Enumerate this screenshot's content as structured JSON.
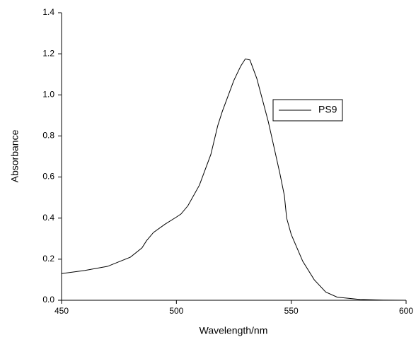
{
  "chart_data": {
    "type": "line",
    "xlabel": "Wavelength/nm",
    "ylabel": "Absorbance",
    "x": [
      450,
      460,
      470,
      480,
      485,
      487,
      490,
      495,
      500,
      502,
      505,
      510,
      515,
      518,
      520,
      525,
      528,
      530,
      532,
      535,
      540,
      545,
      547,
      548,
      550,
      555,
      560,
      565,
      570,
      580,
      590,
      600
    ],
    "series": [
      {
        "name": "PS9",
        "color": "#000000",
        "values": [
          0.13,
          0.145,
          0.165,
          0.21,
          0.255,
          0.29,
          0.33,
          0.37,
          0.405,
          0.42,
          0.46,
          0.56,
          0.71,
          0.85,
          0.92,
          1.07,
          1.14,
          1.175,
          1.17,
          1.08,
          0.87,
          0.62,
          0.51,
          0.4,
          0.32,
          0.19,
          0.1,
          0.04,
          0.015,
          0.004,
          0.001,
          0.0
        ]
      }
    ],
    "xlim": [
      450,
      600
    ],
    "xticks": [
      450,
      500,
      550,
      600
    ],
    "ylim": [
      0,
      1.4
    ],
    "yticks": [
      {
        "value": 0,
        "label": "0.0"
      },
      0.2,
      0.4,
      0.6,
      0.8,
      {
        "value": 1,
        "label": "1.0"
      },
      1.2,
      1.4
    ],
    "legend": true
  }
}
